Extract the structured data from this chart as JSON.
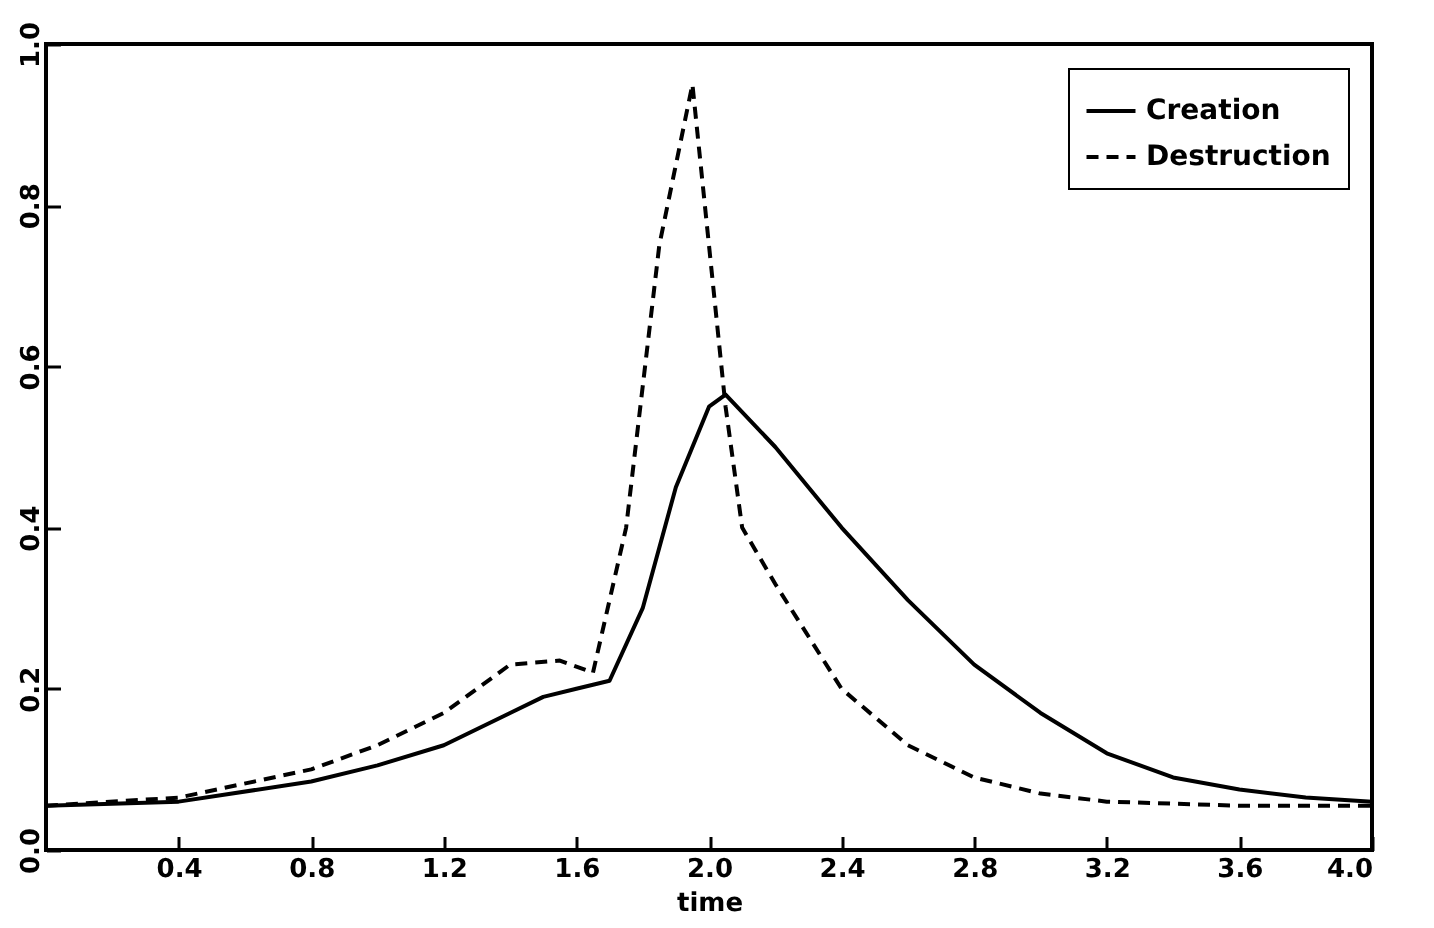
{
  "chart_data": {
    "type": "line",
    "xlabel": "time",
    "xlim": [
      0,
      4
    ],
    "ylim": [
      0,
      1
    ],
    "xticks": [
      0.4,
      0.8,
      1.2,
      1.6,
      {
        "value": 2,
        "label": "2.0"
      },
      2.4,
      2.8,
      3.2,
      3.6,
      {
        "value": 4,
        "label": "4.0"
      }
    ],
    "yticks": [
      {
        "value": 0,
        "label": "0.0"
      },
      0.2,
      0.4,
      0.6,
      0.8,
      {
        "value": 1,
        "label": "1.0"
      }
    ],
    "grid": false,
    "legend": "top right",
    "x": [
      0,
      0.4,
      0.8,
      1.0,
      1.2,
      1.4,
      1.5,
      1.6,
      1.7,
      1.8,
      1.9,
      2.0,
      2.05,
      2.2,
      2.4,
      2.6,
      2.8,
      3.0,
      3.2,
      3.4,
      3.6,
      3.8,
      4.0
    ],
    "series": [
      {
        "name": "Creation",
        "color": "#000000",
        "line_style": "solid",
        "values": [
          0.055,
          0.06,
          0.085,
          0.105,
          0.13,
          0.17,
          0.19,
          0.2,
          0.21,
          0.3,
          0.45,
          0.55,
          0.565,
          0.5,
          0.4,
          0.31,
          0.23,
          0.17,
          0.12,
          0.09,
          0.075,
          0.065,
          0.06
        ]
      },
      {
        "name": "Destruction",
        "color": "#000000",
        "line_style": "dashed",
        "x": [
          0,
          0.4,
          0.8,
          1.0,
          1.2,
          1.4,
          1.55,
          1.65,
          1.75,
          1.85,
          1.95,
          2.0,
          2.05,
          2.1,
          2.2,
          2.4,
          2.6,
          2.8,
          3.0,
          3.2,
          3.6,
          4.0
        ],
        "values": [
          0.055,
          0.065,
          0.1,
          0.13,
          0.17,
          0.23,
          0.235,
          0.22,
          0.4,
          0.75,
          0.95,
          0.75,
          0.55,
          0.4,
          0.33,
          0.2,
          0.13,
          0.09,
          0.07,
          0.06,
          0.055,
          0.055
        ]
      }
    ]
  }
}
